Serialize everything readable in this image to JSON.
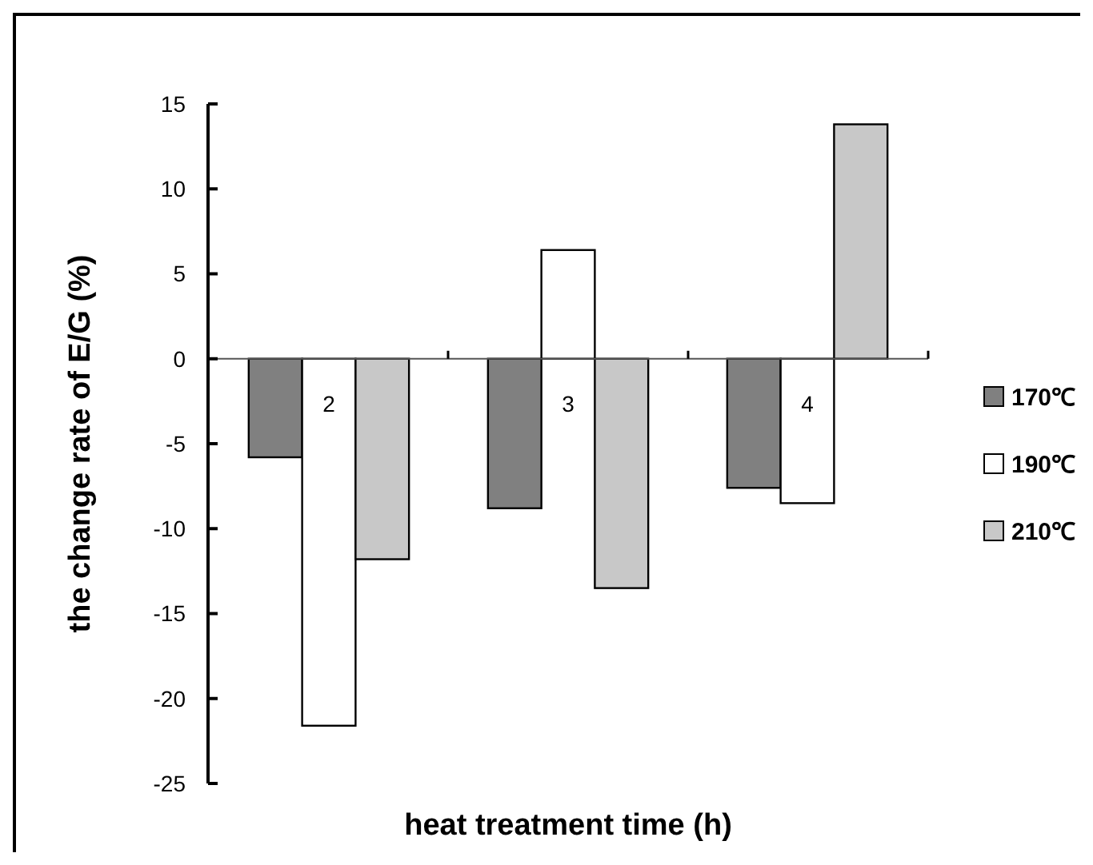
{
  "chart_data": {
    "type": "bar",
    "xlabel": "heat treatment time (h)",
    "ylabel": "the change rate of E/G (%)",
    "categories": [
      "2",
      "3",
      "4"
    ],
    "series": [
      {
        "name": "170℃",
        "color": "#808080",
        "values": [
          -5.8,
          -8.8,
          -7.6
        ]
      },
      {
        "name": "190℃",
        "color": "#ffffff",
        "values": [
          -21.6,
          6.4,
          -8.5
        ]
      },
      {
        "name": "210℃",
        "color": "#c8c8c8",
        "values": [
          -11.8,
          -13.5,
          13.8
        ]
      }
    ],
    "ylim": [
      -25,
      15
    ],
    "yticks": [
      -25,
      -20,
      -15,
      -10,
      -5,
      0,
      5,
      10,
      15
    ],
    "grid": false,
    "legend": "right"
  }
}
